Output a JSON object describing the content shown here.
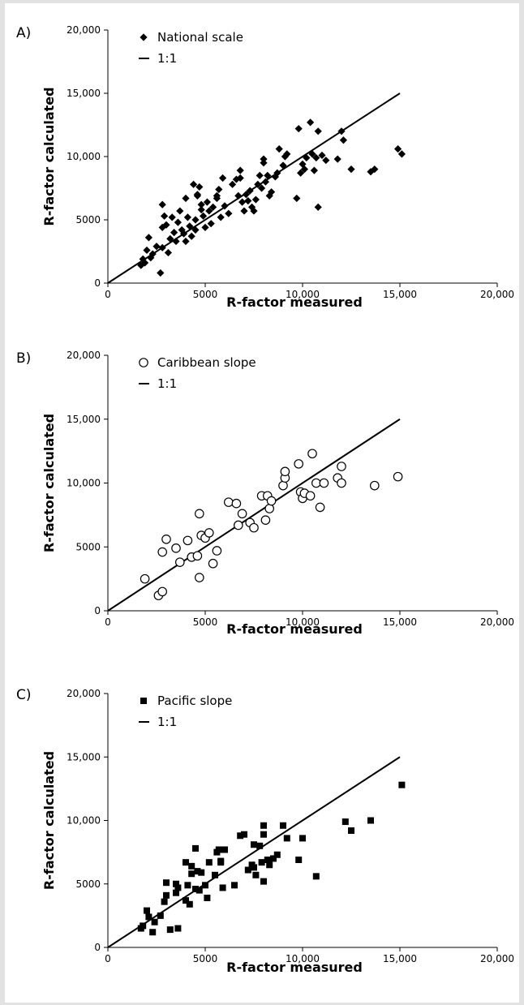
{
  "chart_data": [
    {
      "type": "scatter",
      "panel_label": "A)",
      "xlabel": "R-factor measured",
      "ylabel": "R-factor calculated",
      "xlim": [
        0,
        20000
      ],
      "ylim": [
        0,
        20000
      ],
      "xticks": [
        "0",
        "5000",
        "10,000",
        "15,000",
        "20,000"
      ],
      "yticks": [
        "0",
        "5000",
        "10,000",
        "15,000",
        "20,000"
      ],
      "legend_position": "top-left",
      "marker": "diamond",
      "series": [
        {
          "name": "National scale",
          "x": [
            1700,
            1800,
            1900,
            2000,
            2100,
            2200,
            2300,
            2500,
            2700,
            2800,
            2800,
            2900,
            3000,
            3100,
            3200,
            3300,
            3400,
            3500,
            3600,
            3700,
            3800,
            3900,
            4000,
            4000,
            4100,
            4200,
            4300,
            4400,
            4500,
            4500,
            4600,
            4700,
            4800,
            4800,
            4900,
            5000,
            5100,
            5200,
            5300,
            5400,
            5600,
            5700,
            5800,
            5900,
            6000,
            6200,
            6400,
            6600,
            6700,
            6800,
            6900,
            7000,
            7100,
            7200,
            7300,
            7400,
            7500,
            7600,
            7700,
            7800,
            7900,
            8000,
            8100,
            8200,
            8300,
            8400,
            8600,
            8700,
            8800,
            9000,
            9100,
            9200,
            9700,
            9800,
            9900,
            10000,
            10100,
            10200,
            10400,
            10500,
            10600,
            10700,
            10800,
            11000,
            11200,
            11800,
            12000,
            12100,
            12500,
            13500,
            13700,
            14900,
            15100,
            2800,
            4600,
            5600,
            6800,
            8000,
            10800
          ],
          "y": [
            1400,
            1900,
            1600,
            2600,
            3600,
            2000,
            2300,
            2900,
            800,
            6200,
            4400,
            5300,
            4600,
            2400,
            3500,
            5200,
            4000,
            3300,
            4800,
            5700,
            4200,
            3900,
            6700,
            3300,
            5200,
            4500,
            3700,
            7800,
            5000,
            4200,
            7000,
            7600,
            5800,
            6200,
            5300,
            4400,
            6400,
            5700,
            4700,
            6000,
            6700,
            7400,
            5200,
            8300,
            6100,
            5500,
            7800,
            8200,
            6900,
            8900,
            6400,
            5700,
            7000,
            6500,
            7300,
            6000,
            5700,
            6600,
            7800,
            8500,
            7500,
            9500,
            8000,
            8500,
            6900,
            7200,
            8400,
            8700,
            10600,
            9300,
            10000,
            10200,
            6700,
            12200,
            8700,
            9400,
            9000,
            9900,
            12700,
            10200,
            8900,
            9900,
            6000,
            10100,
            9700,
            9800,
            12000,
            11300,
            9000,
            8800,
            9000,
            10600,
            10200,
            2800,
            6900,
            6900,
            8300,
            9800,
            12000
          ]
        },
        {
          "name": "1:1",
          "x": [
            0,
            15000
          ],
          "y": [
            0,
            15000
          ]
        }
      ]
    },
    {
      "type": "scatter",
      "panel_label": "B)",
      "xlabel": "R-factor measured",
      "ylabel": "R-factor calculated",
      "xlim": [
        0,
        20000
      ],
      "ylim": [
        0,
        20000
      ],
      "xticks": [
        "0",
        "5000",
        "10,000",
        "15,000",
        "20,000"
      ],
      "yticks": [
        "0",
        "5000",
        "10,000",
        "15,000",
        "20,000"
      ],
      "legend_position": "top-left",
      "marker": "open-circle",
      "series": [
        {
          "name": "Caribbean slope",
          "x": [
            1900,
            2600,
            2800,
            2800,
            3000,
            3500,
            3700,
            4100,
            4300,
            4600,
            4700,
            4700,
            4800,
            5000,
            5200,
            5400,
            5600,
            6200,
            6600,
            6700,
            6900,
            7300,
            7500,
            7900,
            8100,
            8200,
            8300,
            8400,
            9000,
            9100,
            9100,
            9800,
            9900,
            10000,
            10100,
            10400,
            10500,
            10700,
            10900,
            11100,
            11800,
            12000,
            12000,
            13700,
            14900
          ],
          "y": [
            2500,
            1200,
            1500,
            4600,
            5600,
            4900,
            3800,
            5500,
            4200,
            4300,
            2600,
            7600,
            5900,
            5700,
            6100,
            3700,
            4700,
            8500,
            8400,
            6700,
            7600,
            6900,
            6500,
            9000,
            7100,
            9000,
            8000,
            8600,
            9800,
            10400,
            10900,
            11500,
            9300,
            8800,
            9200,
            9000,
            12300,
            10000,
            8100,
            10000,
            10400,
            10000,
            11300,
            9800,
            10500
          ]
        },
        {
          "name": "1:1",
          "x": [
            0,
            15000
          ],
          "y": [
            0,
            15000
          ]
        }
      ]
    },
    {
      "type": "scatter",
      "panel_label": "C)",
      "xlabel": "R-factor measured",
      "ylabel": "R-factor calculated",
      "xlim": [
        0,
        20000
      ],
      "ylim": [
        0,
        20000
      ],
      "xticks": [
        "0",
        "5000",
        "10,000",
        "15,000",
        "20,000"
      ],
      "yticks": [
        "0",
        "5000",
        "10,000",
        "15,000",
        "20,000"
      ],
      "legend_position": "top-left",
      "marker": "filled-square",
      "series": [
        {
          "name": "Pacific slope",
          "x": [
            1700,
            1800,
            2000,
            2100,
            2300,
            2400,
            2700,
            2900,
            3000,
            3000,
            3200,
            3500,
            3500,
            3600,
            3600,
            4000,
            4000,
            4100,
            4200,
            4300,
            4300,
            4500,
            4500,
            4600,
            4700,
            4800,
            5000,
            5100,
            5200,
            5500,
            5600,
            5700,
            5800,
            5800,
            5900,
            6000,
            6500,
            6800,
            7000,
            7200,
            7400,
            7500,
            7500,
            7600,
            7800,
            7900,
            8000,
            8000,
            8000,
            8200,
            8300,
            8500,
            8700,
            9000,
            9200,
            9800,
            10000,
            10700,
            12200,
            12500,
            13500,
            15100
          ],
          "y": [
            1500,
            1700,
            2900,
            2400,
            1200,
            2000,
            2500,
            3600,
            5100,
            4100,
            1400,
            5000,
            4300,
            1500,
            4700,
            3700,
            6700,
            4900,
            3400,
            6400,
            5800,
            7800,
            4600,
            6000,
            4500,
            5900,
            4900,
            3900,
            6700,
            5700,
            7500,
            7700,
            6800,
            6700,
            4700,
            7700,
            4900,
            8800,
            8900,
            6100,
            6500,
            8100,
            6300,
            5700,
            8000,
            6700,
            9600,
            8900,
            5200,
            6900,
            6500,
            7000,
            7300,
            9600,
            8600,
            6900,
            8600,
            5600,
            9900,
            9200,
            10000,
            12800
          ]
        },
        {
          "name": "1:1",
          "x": [
            0,
            15000
          ],
          "y": [
            0,
            15000
          ]
        }
      ]
    }
  ]
}
